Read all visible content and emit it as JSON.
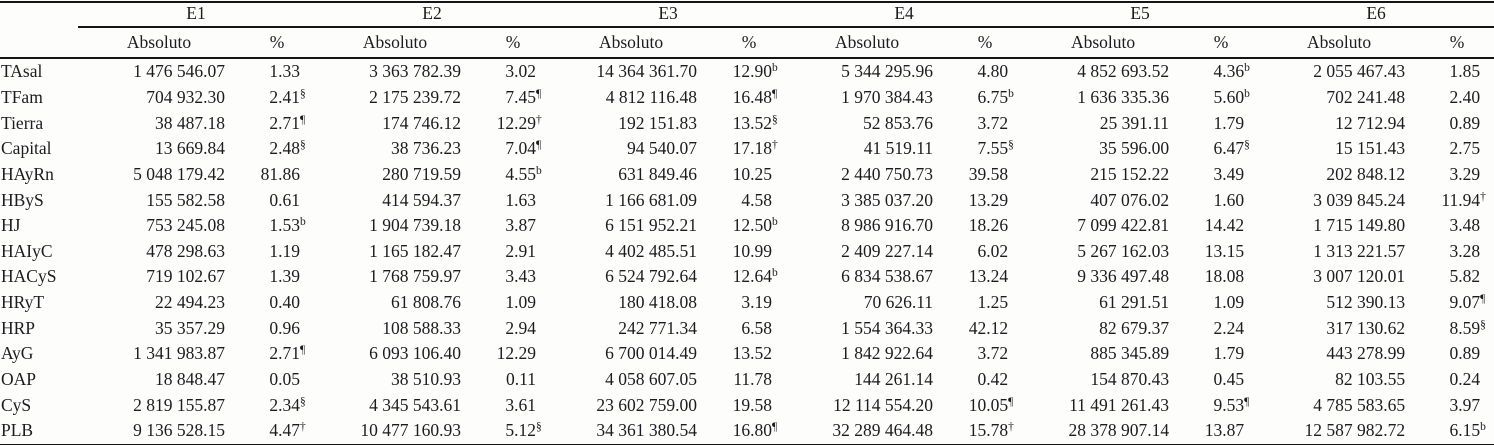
{
  "table": {
    "groups": [
      "E1",
      "E2",
      "E3",
      "E4",
      "E5",
      "E6"
    ],
    "col_absolute": "Absoluto",
    "col_percent": "%",
    "footnote_marks_used": [
      "b",
      "§",
      "¶",
      "†"
    ],
    "rows": [
      {
        "label": "TAsal",
        "cells": [
          {
            "abs": "1 476 546.07",
            "pct": "1.33",
            "mark": ""
          },
          {
            "abs": "3 363 782.39",
            "pct": "3.02",
            "mark": ""
          },
          {
            "abs": "14 364 361.70",
            "pct": "12.90",
            "mark": "b"
          },
          {
            "abs": "5 344 295.96",
            "pct": "4.80",
            "mark": ""
          },
          {
            "abs": "4 852 693.52",
            "pct": "4.36",
            "mark": "b"
          },
          {
            "abs": "2 055 467.43",
            "pct": "1.85",
            "mark": ""
          }
        ]
      },
      {
        "label": "TFam",
        "cells": [
          {
            "abs": "704 932.30",
            "pct": "2.41",
            "mark": "§"
          },
          {
            "abs": "2 175 239.72",
            "pct": "7.45",
            "mark": "¶"
          },
          {
            "abs": "4 812 116.48",
            "pct": "16.48",
            "mark": "¶"
          },
          {
            "abs": "1 970 384.43",
            "pct": "6.75",
            "mark": "b"
          },
          {
            "abs": "1 636 335.36",
            "pct": "5.60",
            "mark": "b"
          },
          {
            "abs": "702 241.48",
            "pct": "2.40",
            "mark": ""
          }
        ]
      },
      {
        "label": "Tierra",
        "cells": [
          {
            "abs": "38 487.18",
            "pct": "2.71",
            "mark": "¶"
          },
          {
            "abs": "174 746.12",
            "pct": "12.29",
            "mark": "†"
          },
          {
            "abs": "192 151.83",
            "pct": "13.52",
            "mark": "§"
          },
          {
            "abs": "52 853.76",
            "pct": "3.72",
            "mark": ""
          },
          {
            "abs": "25 391.11",
            "pct": "1.79",
            "mark": ""
          },
          {
            "abs": "12 712.94",
            "pct": "0.89",
            "mark": ""
          }
        ]
      },
      {
        "label": "Capital",
        "cells": [
          {
            "abs": "13 669.84",
            "pct": "2.48",
            "mark": "§"
          },
          {
            "abs": "38 736.23",
            "pct": "7.04",
            "mark": "¶"
          },
          {
            "abs": "94 540.07",
            "pct": "17.18",
            "mark": "†"
          },
          {
            "abs": "41 519.11",
            "pct": "7.55",
            "mark": "§"
          },
          {
            "abs": "35 596.00",
            "pct": "6.47",
            "mark": "§"
          },
          {
            "abs": "15 151.43",
            "pct": "2.75",
            "mark": ""
          }
        ]
      },
      {
        "label": "HAyRn",
        "cells": [
          {
            "abs": "5 048 179.42",
            "pct": "81.86",
            "mark": ""
          },
          {
            "abs": "280 719.59",
            "pct": "4.55",
            "mark": "b"
          },
          {
            "abs": "631 849.46",
            "pct": "10.25",
            "mark": ""
          },
          {
            "abs": "2 440 750.73",
            "pct": "39.58",
            "mark": ""
          },
          {
            "abs": "215 152.22",
            "pct": "3.49",
            "mark": ""
          },
          {
            "abs": "202 848.12",
            "pct": "3.29",
            "mark": ""
          }
        ]
      },
      {
        "label": "HByS",
        "cells": [
          {
            "abs": "155 582.58",
            "pct": "0.61",
            "mark": ""
          },
          {
            "abs": "414 594.37",
            "pct": "1.63",
            "mark": ""
          },
          {
            "abs": "1 166 681.09",
            "pct": "4.58",
            "mark": ""
          },
          {
            "abs": "3 385 037.20",
            "pct": "13.29",
            "mark": ""
          },
          {
            "abs": "407 076.02",
            "pct": "1.60",
            "mark": ""
          },
          {
            "abs": "3 039 845.24",
            "pct": "11.94",
            "mark": "†"
          }
        ]
      },
      {
        "label": "HJ",
        "cells": [
          {
            "abs": "753 245.08",
            "pct": "1.53",
            "mark": "b"
          },
          {
            "abs": "1 904 739.18",
            "pct": "3.87",
            "mark": ""
          },
          {
            "abs": "6 151 952.21",
            "pct": "12.50",
            "mark": "b"
          },
          {
            "abs": "8 986 916.70",
            "pct": "18.26",
            "mark": ""
          },
          {
            "abs": "7 099 422.81",
            "pct": "14.42",
            "mark": ""
          },
          {
            "abs": "1 715 149.80",
            "pct": "3.48",
            "mark": ""
          }
        ]
      },
      {
        "label": "HAIyC",
        "cells": [
          {
            "abs": "478 298.63",
            "pct": "1.19",
            "mark": ""
          },
          {
            "abs": "1 165 182.47",
            "pct": "2.91",
            "mark": ""
          },
          {
            "abs": "4 402 485.51",
            "pct": "10.99",
            "mark": ""
          },
          {
            "abs": "2 409 227.14",
            "pct": "6.02",
            "mark": ""
          },
          {
            "abs": "5 267 162.03",
            "pct": "13.15",
            "mark": ""
          },
          {
            "abs": "1 313 221.57",
            "pct": "3.28",
            "mark": ""
          }
        ]
      },
      {
        "label": "HACyS",
        "cells": [
          {
            "abs": "719 102.67",
            "pct": "1.39",
            "mark": ""
          },
          {
            "abs": "1 768 759.97",
            "pct": "3.43",
            "mark": ""
          },
          {
            "abs": "6 524 792.64",
            "pct": "12.64",
            "mark": "b"
          },
          {
            "abs": "6 834 538.67",
            "pct": "13.24",
            "mark": ""
          },
          {
            "abs": "9 336 497.48",
            "pct": "18.08",
            "mark": ""
          },
          {
            "abs": "3 007 120.01",
            "pct": "5.82",
            "mark": ""
          }
        ]
      },
      {
        "label": "HRyT",
        "cells": [
          {
            "abs": "22 494.23",
            "pct": "0.40",
            "mark": ""
          },
          {
            "abs": "61 808.76",
            "pct": "1.09",
            "mark": ""
          },
          {
            "abs": "180 418.08",
            "pct": "3.19",
            "mark": ""
          },
          {
            "abs": "70 626.11",
            "pct": "1.25",
            "mark": ""
          },
          {
            "abs": "61 291.51",
            "pct": "1.09",
            "mark": ""
          },
          {
            "abs": "512 390.13",
            "pct": "9.07",
            "mark": "¶"
          }
        ]
      },
      {
        "label": "HRP",
        "cells": [
          {
            "abs": "35 357.29",
            "pct": "0.96",
            "mark": ""
          },
          {
            "abs": "108 588.33",
            "pct": "2.94",
            "mark": ""
          },
          {
            "abs": "242 771.34",
            "pct": "6.58",
            "mark": ""
          },
          {
            "abs": "1 554 364.33",
            "pct": "42.12",
            "mark": ""
          },
          {
            "abs": "82 679.37",
            "pct": "2.24",
            "mark": ""
          },
          {
            "abs": "317 130.62",
            "pct": "8.59",
            "mark": "§"
          }
        ]
      },
      {
        "label": "AyG",
        "cells": [
          {
            "abs": "1 341 983.87",
            "pct": "2.71",
            "mark": "¶"
          },
          {
            "abs": "6 093 106.40",
            "pct": "12.29",
            "mark": ""
          },
          {
            "abs": "6 700 014.49",
            "pct": "13.52",
            "mark": ""
          },
          {
            "abs": "1 842 922.64",
            "pct": "3.72",
            "mark": ""
          },
          {
            "abs": "885 345.89",
            "pct": "1.79",
            "mark": ""
          },
          {
            "abs": "443 278.99",
            "pct": "0.89",
            "mark": ""
          }
        ]
      },
      {
        "label": "OAP",
        "cells": [
          {
            "abs": "18 848.47",
            "pct": "0.05",
            "mark": ""
          },
          {
            "abs": "38 510.93",
            "pct": "0.11",
            "mark": ""
          },
          {
            "abs": "4 058 607.05",
            "pct": "11.78",
            "mark": ""
          },
          {
            "abs": "144 261.14",
            "pct": "0.42",
            "mark": ""
          },
          {
            "abs": "154 870.43",
            "pct": "0.45",
            "mark": ""
          },
          {
            "abs": "82 103.55",
            "pct": "0.24",
            "mark": ""
          }
        ]
      },
      {
        "label": "CyS",
        "cells": [
          {
            "abs": "2 819 155.87",
            "pct": "2.34",
            "mark": "§"
          },
          {
            "abs": "4 345 543.61",
            "pct": "3.61",
            "mark": ""
          },
          {
            "abs": "23 602 759.00",
            "pct": "19.58",
            "mark": ""
          },
          {
            "abs": "12 114 554.20",
            "pct": "10.05",
            "mark": "¶"
          },
          {
            "abs": "11 491 261.43",
            "pct": "9.53",
            "mark": "¶"
          },
          {
            "abs": "4 785 583.65",
            "pct": "3.97",
            "mark": ""
          }
        ]
      },
      {
        "label": "PLB",
        "cells": [
          {
            "abs": "9 136 528.15",
            "pct": "4.47",
            "mark": "†"
          },
          {
            "abs": "10 477 160.93",
            "pct": "5.12",
            "mark": "§"
          },
          {
            "abs": "34 361 380.54",
            "pct": "16.80",
            "mark": "¶"
          },
          {
            "abs": "32 289 464.48",
            "pct": "15.78",
            "mark": "†"
          },
          {
            "abs": "28 378 907.14",
            "pct": "13.87",
            "mark": ""
          },
          {
            "abs": "12 587 982.72",
            "pct": "6.15",
            "mark": "b"
          }
        ]
      }
    ]
  }
}
